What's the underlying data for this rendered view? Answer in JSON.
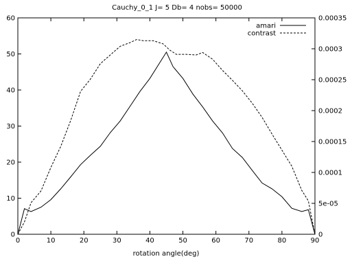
{
  "chart_data": {
    "type": "line",
    "title": "Cauchy_0_1 J= 5  Db= 4  nobs= 50000",
    "xlabel": "rotation angle(deg)",
    "ylabel": "",
    "y2label": "",
    "xlim": [
      0,
      90
    ],
    "ylim": [
      0,
      60
    ],
    "y2lim": [
      0,
      0.00035
    ],
    "grid": false,
    "legend_position": "top-right",
    "x_ticks": [
      "0",
      "10",
      "20",
      "30",
      "40",
      "50",
      "60",
      "70",
      "80",
      "90"
    ],
    "y_ticks": [
      "0",
      "10",
      "20",
      "30",
      "40",
      "50",
      "60"
    ],
    "y2_ticks": [
      "0",
      "5e-05",
      "0.0001",
      "0.00015",
      "0.0002",
      "0.00025",
      "0.0003",
      "0.00035"
    ],
    "series": [
      {
        "name": "amari",
        "axis": "left",
        "style": "solid",
        "x": [
          0,
          2,
          4,
          7,
          10,
          13,
          16,
          19,
          22,
          25,
          28,
          31,
          34,
          37,
          40,
          43,
          45,
          47,
          50,
          53,
          56,
          59,
          62,
          65,
          68,
          71,
          74,
          77,
          80,
          83,
          86,
          88,
          90
        ],
        "values": [
          0,
          7.1,
          6.3,
          7.5,
          9.6,
          12.6,
          15.9,
          19.3,
          21.9,
          24.4,
          28.2,
          31.4,
          35.5,
          39.6,
          43.2,
          47.6,
          50.5,
          46.5,
          43.2,
          38.9,
          35.3,
          31.4,
          28.1,
          23.8,
          21.3,
          17.7,
          14.2,
          12.6,
          10.4,
          7.2,
          6.3,
          6.8,
          0
        ]
      },
      {
        "name": "contrast",
        "axis": "right",
        "style": "dashed",
        "x": [
          0,
          2,
          4,
          7,
          10,
          13,
          16,
          19,
          22,
          25,
          28,
          31,
          34,
          36,
          38,
          41,
          44,
          46,
          48,
          51,
          54,
          56,
          59,
          62,
          65,
          68,
          71,
          74,
          77,
          80,
          83,
          86,
          88,
          90
        ],
        "values": [
          0,
          2e-05,
          5.1e-05,
          7e-05,
          0.000108,
          0.000142,
          0.000184,
          0.000231,
          0.000251,
          0.000276,
          0.00029,
          0.000304,
          0.00031,
          0.000315,
          0.000313,
          0.000313,
          0.000308,
          0.000298,
          0.000291,
          0.000291,
          0.00029,
          0.000294,
          0.000283,
          0.000265,
          0.000249,
          0.000232,
          0.000212,
          0.000189,
          0.000162,
          0.000136,
          0.00011,
          7.1e-05,
          5.4e-05,
          0
        ]
      }
    ]
  }
}
